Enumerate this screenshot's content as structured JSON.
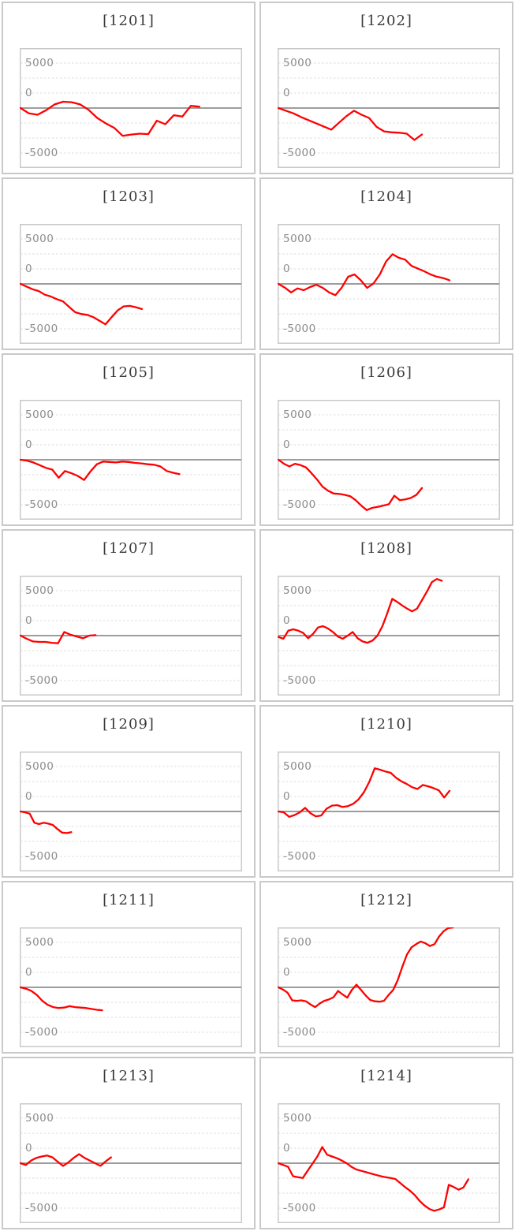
{
  "chart_data": {
    "type": "line",
    "grid": "horizontal-dashed",
    "legend": "none",
    "colors": {
      "series": "#ff0000",
      "zero_axis": "#8f8f8f",
      "gridline": "#dcdcdc",
      "plot_border": "#c9c9c9",
      "card_border": "#c9c9c9",
      "tick_text": "#8e8e8e",
      "title_text": "#3b3b3b"
    },
    "shared": {
      "yticks": [
        "5000",
        "0",
        "-5000"
      ],
      "ylim": [
        -6667,
        6667
      ],
      "zero_line_value": 0,
      "xlabel": "",
      "ylabel": ""
    },
    "charts": [
      {
        "title": "[1201]",
        "span": 0.81,
        "values": [
          0,
          -600,
          -750,
          -250,
          400,
          700,
          650,
          400,
          -200,
          -1100,
          -1700,
          -2200,
          -3100,
          -2950,
          -2850,
          -2900,
          -1400,
          -1800,
          -800,
          -950,
          250,
          150
        ]
      },
      {
        "title": "[1202]",
        "span": 0.65,
        "values": [
          0,
          -300,
          -600,
          -1000,
          -1350,
          -1700,
          -2050,
          -2400,
          -1650,
          -900,
          -300,
          -750,
          -1100,
          -2100,
          -2600,
          -2700,
          -2750,
          -2850,
          -3550,
          -2950
        ]
      },
      {
        "title": "[1203]",
        "span": 0.55,
        "values": [
          0,
          -300,
          -600,
          -800,
          -1200,
          -1400,
          -1700,
          -1950,
          -2550,
          -3150,
          -3350,
          -3450,
          -3700,
          -4100,
          -4500,
          -3700,
          -2950,
          -2500,
          -2450,
          -2600,
          -2800
        ]
      },
      {
        "title": "[1204]",
        "span": 0.775,
        "values": [
          0,
          -400,
          -950,
          -500,
          -700,
          -350,
          -100,
          -450,
          -950,
          -1250,
          -400,
          800,
          1050,
          400,
          -450,
          50,
          1050,
          2500,
          3300,
          2900,
          2700,
          2000,
          1700,
          1400,
          1050,
          800,
          650,
          400
        ]
      },
      {
        "title": "[1205]",
        "span": 0.72,
        "values": [
          0,
          -100,
          -300,
          -600,
          -900,
          -1100,
          -2000,
          -1250,
          -1500,
          -1800,
          -2250,
          -1300,
          -500,
          -200,
          -250,
          -300,
          -200,
          -250,
          -350,
          -400,
          -500,
          -550,
          -750,
          -1250,
          -1450,
          -1600
        ]
      },
      {
        "title": "[1206]",
        "span": 0.65,
        "values": [
          0,
          -450,
          -750,
          -450,
          -600,
          -850,
          -1500,
          -2200,
          -3000,
          -3450,
          -3750,
          -3800,
          -3900,
          -4050,
          -4500,
          -5100,
          -5600,
          -5350,
          -5250,
          -5100,
          -4950,
          -4000,
          -4500,
          -4400,
          -4250,
          -3900,
          -3150
        ]
      },
      {
        "title": "[1207]",
        "span": 0.34,
        "values": [
          0,
          -350,
          -650,
          -700,
          -700,
          -800,
          -850,
          400,
          100,
          -100,
          -300,
          0,
          50
        ]
      },
      {
        "title": "[1208]",
        "span": 0.74,
        "values": [
          -150,
          -350,
          550,
          700,
          550,
          300,
          -300,
          200,
          900,
          1050,
          800,
          400,
          -100,
          -350,
          0,
          400,
          -300,
          -650,
          -800,
          -550,
          0,
          1050,
          2500,
          4100,
          3750,
          3350,
          3000,
          2700,
          3000,
          3950,
          4900,
          5950,
          6300,
          6100
        ]
      },
      {
        "title": "[1209]",
        "span": 0.23,
        "values": [
          0,
          -100,
          -250,
          -1250,
          -1400,
          -1250,
          -1350,
          -1500,
          -1950,
          -2350,
          -2400,
          -2300
        ]
      },
      {
        "title": "[1210]",
        "span": 0.775,
        "values": [
          0,
          -100,
          -600,
          -400,
          -100,
          400,
          -200,
          -550,
          -450,
          300,
          650,
          700,
          500,
          600,
          850,
          1350,
          2150,
          3300,
          4800,
          4650,
          4450,
          4300,
          3750,
          3350,
          3050,
          2700,
          2500,
          2950,
          2800,
          2600,
          2350,
          1550,
          2300
        ]
      },
      {
        "title": "[1211]",
        "span": 0.37,
        "values": [
          0,
          -150,
          -400,
          -850,
          -1500,
          -1950,
          -2200,
          -2300,
          -2250,
          -2100,
          -2200,
          -2250,
          -2300,
          -2400,
          -2500,
          -2550
        ]
      },
      {
        "title": "[1212]",
        "span": 0.79,
        "values": [
          0,
          -250,
          -600,
          -1450,
          -1500,
          -1450,
          -1550,
          -1900,
          -2200,
          -1800,
          -1500,
          -1350,
          -1100,
          -400,
          -800,
          -1150,
          -300,
          300,
          -300,
          -900,
          -1400,
          -1550,
          -1600,
          -1500,
          -850,
          -300,
          800,
          2300,
          3650,
          4450,
          4800,
          5100,
          4900,
          4600,
          4800,
          5650,
          6250,
          6600,
          6650
        ]
      },
      {
        "title": "[1213]",
        "span": 0.41,
        "values": [
          0,
          -200,
          300,
          600,
          750,
          850,
          650,
          150,
          -300,
          100,
          600,
          1000,
          600,
          300,
          0,
          -300,
          200,
          650
        ]
      },
      {
        "title": "[1214]",
        "span": 0.86,
        "values": [
          0,
          -200,
          -400,
          -1450,
          -1550,
          -1650,
          -850,
          -50,
          750,
          1800,
          950,
          750,
          550,
          300,
          0,
          -400,
          -700,
          -850,
          -1000,
          -1150,
          -1300,
          -1450,
          -1550,
          -1650,
          -1750,
          -2200,
          -2650,
          -3050,
          -3550,
          -4200,
          -4700,
          -5100,
          -5300,
          -5150,
          -4900,
          -2400,
          -2650,
          -2950,
          -2700,
          -1800
        ]
      }
    ]
  }
}
